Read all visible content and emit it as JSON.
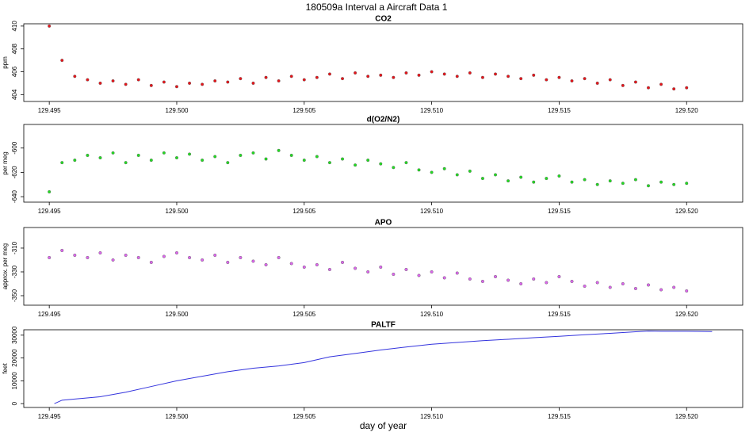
{
  "title": "180509a   Interval a Aircraft Data 1",
  "chart_data": [
    {
      "type": "scatter",
      "title": "CO2",
      "ylabel": "ppm",
      "color": "#e8141a",
      "xlim": [
        129.494,
        129.5222
      ],
      "ylim": [
        403.4,
        410.2
      ],
      "yticks": [
        404,
        406,
        408,
        410
      ],
      "xticks": [
        129.495,
        {
          "value": 129.5,
          "label": "129.500"
        },
        129.505,
        {
          "value": 129.51,
          "label": "129.510"
        },
        129.515,
        {
          "value": 129.52,
          "label": "129.520"
        }
      ],
      "x": [
        129.495,
        129.4955,
        129.496,
        129.4965,
        129.497,
        129.4975,
        129.498,
        129.4985,
        129.499,
        129.4995,
        129.5,
        129.5005,
        129.501,
        129.5015,
        129.502,
        129.5025,
        129.503,
        129.5035,
        129.504,
        129.5045,
        129.505,
        129.5055,
        129.506,
        129.5065,
        129.507,
        129.5075,
        129.508,
        129.5085,
        129.509,
        129.5095,
        129.51,
        129.5105,
        129.511,
        129.5115,
        129.512,
        129.5125,
        129.513,
        129.5135,
        129.514,
        129.5145,
        129.515,
        129.5155,
        129.516,
        129.5165,
        129.517,
        129.5175,
        129.518,
        129.5185,
        129.519,
        129.5195,
        129.52
      ],
      "y": [
        410.0,
        407.0,
        405.6,
        405.3,
        405.0,
        405.2,
        404.9,
        405.3,
        404.8,
        405.1,
        404.7,
        405.0,
        404.9,
        405.2,
        405.1,
        405.4,
        405.0,
        405.5,
        405.2,
        405.6,
        405.3,
        405.5,
        405.8,
        405.4,
        405.9,
        405.6,
        405.7,
        405.5,
        405.9,
        405.7,
        406.0,
        405.8,
        405.6,
        405.9,
        405.5,
        405.8,
        405.6,
        405.4,
        405.7,
        405.3,
        405.5,
        405.2,
        405.4,
        405.0,
        405.3,
        404.8,
        405.1,
        404.6,
        404.9,
        404.5,
        404.6
      ]
    },
    {
      "type": "scatter",
      "title": "d(O2/N2)",
      "ylabel": "per meg",
      "color": "#22dd22",
      "xlim": [
        129.494,
        129.5222
      ],
      "ylim": [
        -644.5,
        -580.6
      ],
      "yticks": [
        -640,
        -620,
        -600
      ],
      "xticks": [
        129.495,
        {
          "value": 129.5,
          "label": "129.500"
        },
        129.505,
        {
          "value": 129.51,
          "label": "129.510"
        },
        129.515,
        {
          "value": 129.52,
          "label": "129.520"
        }
      ],
      "x": [
        129.495,
        129.4955,
        129.496,
        129.4965,
        129.497,
        129.4975,
        129.498,
        129.4985,
        129.499,
        129.4995,
        129.5,
        129.5005,
        129.501,
        129.5015,
        129.502,
        129.5025,
        129.503,
        129.5035,
        129.504,
        129.5045,
        129.505,
        129.5055,
        129.506,
        129.5065,
        129.507,
        129.5075,
        129.508,
        129.5085,
        129.509,
        129.5095,
        129.51,
        129.5105,
        129.511,
        129.5115,
        129.512,
        129.5125,
        129.513,
        129.5135,
        129.514,
        129.5145,
        129.515,
        129.5155,
        129.516,
        129.5165,
        129.517,
        129.5175,
        129.518,
        129.5185,
        129.519,
        129.5195,
        129.52
      ],
      "y": [
        -636,
        -612,
        -610,
        -606,
        -608,
        -604,
        -612,
        -606,
        -610,
        -604,
        -608,
        -605,
        -610,
        -607,
        -612,
        -606,
        -604,
        -609,
        -602,
        -606,
        -610,
        -607,
        -612,
        -609,
        -614,
        -610,
        -613,
        -616,
        -612,
        -618,
        -620,
        -617,
        -622,
        -619,
        -625,
        -622,
        -627,
        -624,
        -628,
        -625,
        -623,
        -628,
        -626,
        -630,
        -627,
        -629,
        -626,
        -631,
        -628,
        -630,
        -629
      ]
    },
    {
      "type": "scatter",
      "title": "APO",
      "ylabel": "approx. per meg",
      "color": "#dd66ee",
      "xlim": [
        129.494,
        129.5222
      ],
      "ylim": [
        -358,
        -292.7
      ],
      "yticks": [
        -350,
        -330,
        -310
      ],
      "xticks": [
        129.495,
        {
          "value": 129.5,
          "label": "129.500"
        },
        129.505,
        {
          "value": 129.51,
          "label": "129.510"
        },
        129.515,
        {
          "value": 129.52,
          "label": "129.520"
        }
      ],
      "x": [
        129.495,
        129.4955,
        129.496,
        129.4965,
        129.497,
        129.4975,
        129.498,
        129.4985,
        129.499,
        129.4995,
        129.5,
        129.5005,
        129.501,
        129.5015,
        129.502,
        129.5025,
        129.503,
        129.5035,
        129.504,
        129.5045,
        129.505,
        129.5055,
        129.506,
        129.5065,
        129.507,
        129.5075,
        129.508,
        129.5085,
        129.509,
        129.5095,
        129.51,
        129.5105,
        129.511,
        129.5115,
        129.512,
        129.5125,
        129.513,
        129.5135,
        129.514,
        129.5145,
        129.515,
        129.5155,
        129.516,
        129.5165,
        129.517,
        129.5175,
        129.518,
        129.5185,
        129.519,
        129.5195,
        129.52
      ],
      "y": [
        -318,
        -312,
        -316,
        -318,
        -314,
        -320,
        -316,
        -318,
        -322,
        -317,
        -314,
        -318,
        -320,
        -316,
        -322,
        -318,
        -321,
        -324,
        -318,
        -323,
        -326,
        -324,
        -328,
        -322,
        -327,
        -330,
        -326,
        -332,
        -328,
        -333,
        -330,
        -335,
        -331,
        -336,
        -338,
        -334,
        -337,
        -340,
        -336,
        -339,
        -334,
        -338,
        -342,
        -339,
        -343,
        -340,
        -344,
        -341,
        -345,
        -343,
        -346
      ]
    },
    {
      "type": "line",
      "title": "PALTF",
      "ylabel": "feet",
      "xlabel": "day of year",
      "color": "#3333dd",
      "xlim": [
        129.494,
        129.5222
      ],
      "ylim": [
        -1685,
        32360
      ],
      "yticks": [
        0,
        10000,
        20000,
        30000
      ],
      "xticks": [
        129.495,
        {
          "value": 129.5,
          "label": "129.500"
        },
        129.505,
        {
          "value": 129.51,
          "label": "129.510"
        },
        129.515,
        {
          "value": 129.52,
          "label": "129.520"
        }
      ],
      "x": [
        129.4952,
        129.4955,
        129.496,
        129.497,
        129.498,
        129.499,
        129.5,
        129.501,
        129.502,
        129.503,
        129.504,
        129.505,
        129.506,
        129.507,
        129.508,
        129.509,
        129.51,
        129.511,
        129.512,
        129.513,
        129.514,
        129.515,
        129.516,
        129.517,
        129.518,
        129.5185,
        129.519,
        129.52,
        129.521
      ],
      "y": [
        0,
        1500,
        2000,
        3000,
        5000,
        7500,
        10000,
        12000,
        14000,
        15500,
        16500,
        18000,
        20500,
        22000,
        23500,
        24800,
        26000,
        26800,
        27600,
        28200,
        28900,
        29500,
        30200,
        30800,
        31500,
        31800,
        31700,
        31700,
        31600
      ]
    }
  ]
}
